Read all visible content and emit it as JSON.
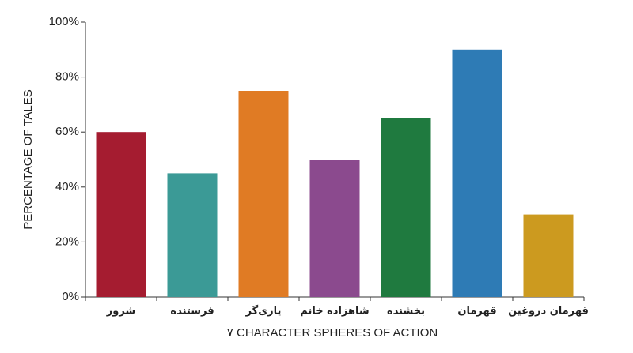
{
  "chart_data": {
    "type": "bar",
    "x_label": "۷ CHARACTER SPHERES OF ACTION",
    "y_label": "PERCENTAGE OF TALES",
    "categories": [
      "شرور",
      "فرستنده",
      "یاری‌گر",
      "شاهزاده خانم",
      "بخشنده",
      "قهرمان",
      "قهرمان دروغین"
    ],
    "values": [
      60,
      45,
      75,
      50,
      65,
      90,
      30
    ],
    "colors": [
      "#a51c30",
      "#3b9a96",
      "#e07b24",
      "#8b4a8e",
      "#1f7a3f",
      "#2e7bb5",
      "#cc9a1f"
    ],
    "ylim": [
      0,
      100
    ],
    "yticks": [
      {
        "value": 0,
        "label": "0%"
      },
      {
        "value": 20,
        "label": "20%"
      },
      {
        "value": 40,
        "label": "40%"
      },
      {
        "value": 60,
        "label": "60%"
      },
      {
        "value": 80,
        "label": "80%"
      },
      {
        "value": 100,
        "label": "100%"
      }
    ],
    "grid": false
  }
}
